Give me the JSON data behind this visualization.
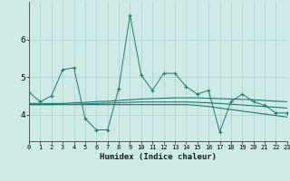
{
  "xlabel": "Humidex (Indice chaleur)",
  "x_values": [
    0,
    1,
    2,
    3,
    4,
    5,
    6,
    7,
    8,
    9,
    10,
    11,
    12,
    13,
    14,
    15,
    16,
    17,
    18,
    19,
    20,
    21,
    22,
    23
  ],
  "line1": [
    4.6,
    4.35,
    4.5,
    5.2,
    5.25,
    3.9,
    3.6,
    3.6,
    4.7,
    6.65,
    5.05,
    4.65,
    5.1,
    5.1,
    4.75,
    4.55,
    4.65,
    3.55,
    4.35,
    4.55,
    4.35,
    4.25,
    4.05,
    4.05
  ],
  "line2": [
    4.3,
    4.3,
    4.3,
    4.3,
    4.32,
    4.33,
    4.35,
    4.36,
    4.38,
    4.4,
    4.42,
    4.43,
    4.44,
    4.45,
    4.45,
    4.45,
    4.44,
    4.43,
    4.42,
    4.41,
    4.4,
    4.38,
    4.36,
    4.35
  ],
  "line3": [
    4.27,
    4.27,
    4.27,
    4.28,
    4.28,
    4.29,
    4.3,
    4.31,
    4.32,
    4.33,
    4.34,
    4.34,
    4.34,
    4.34,
    4.34,
    4.33,
    4.32,
    4.3,
    4.28,
    4.26,
    4.24,
    4.22,
    4.2,
    4.18
  ],
  "line4": [
    4.27,
    4.27,
    4.27,
    4.27,
    4.27,
    4.27,
    4.27,
    4.27,
    4.27,
    4.27,
    4.27,
    4.27,
    4.27,
    4.27,
    4.27,
    4.25,
    4.22,
    4.18,
    4.14,
    4.1,
    4.06,
    4.02,
    3.98,
    3.94
  ],
  "line_color": "#1a7a6e",
  "bg_color": "#ceeae6",
  "grid_color": "#aacccc",
  "ylim": [
    3.3,
    7.0
  ],
  "xlim": [
    0,
    23
  ],
  "yticks": [
    4,
    5,
    6
  ],
  "xticks": [
    0,
    1,
    2,
    3,
    4,
    5,
    6,
    7,
    8,
    9,
    10,
    11,
    12,
    13,
    14,
    15,
    16,
    17,
    18,
    19,
    20,
    21,
    22,
    23
  ]
}
